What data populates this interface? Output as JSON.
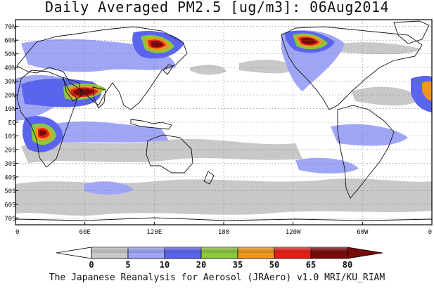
{
  "title": "Daily Averaged PM2.5 [ug/m3]: 06Aug2014",
  "credit": "The Japanese Reanalysis for Aerosol (JRAero) v1.0 MRI/KU_RIAM",
  "map": {
    "projection": "equirectangular, centred on 180",
    "lon_range": [
      0,
      360
    ],
    "lat_range": [
      -75,
      75
    ],
    "grid": "dotted",
    "lat_ticks": [
      {
        "lat": 70,
        "label": "70N"
      },
      {
        "lat": 60,
        "label": "60N"
      },
      {
        "lat": 50,
        "label": "50N"
      },
      {
        "lat": 40,
        "label": "40N"
      },
      {
        "lat": 30,
        "label": "30N"
      },
      {
        "lat": 20,
        "label": "20N"
      },
      {
        "lat": 10,
        "label": "10N"
      },
      {
        "lat": 0,
        "label": "EQ"
      },
      {
        "lat": -10,
        "label": "10S"
      },
      {
        "lat": -20,
        "label": "20S"
      },
      {
        "lat": -30,
        "label": "30S"
      },
      {
        "lat": -40,
        "label": "40S"
      },
      {
        "lat": -50,
        "label": "50S"
      },
      {
        "lat": -60,
        "label": "60S"
      },
      {
        "lat": -70,
        "label": "70S"
      }
    ],
    "lon_ticks": [
      {
        "lon": 0,
        "label": "0"
      },
      {
        "lon": 60,
        "label": "60E"
      },
      {
        "lon": 120,
        "label": "120E"
      },
      {
        "lon": 180,
        "label": "180"
      },
      {
        "lon": 240,
        "label": "120W"
      },
      {
        "lon": 300,
        "label": "60W"
      },
      {
        "lon": 360,
        "label": "0"
      }
    ]
  },
  "colorbar": {
    "levels": [
      "0",
      "5",
      "10",
      "20",
      "35",
      "50",
      "65",
      "80"
    ],
    "colors": [
      "#ffffff",
      "#c8c8c8",
      "#a0a6f6",
      "#5a64ee",
      "#8cc83c",
      "#f0961e",
      "#e61e14",
      "#780a0a"
    ]
  }
}
